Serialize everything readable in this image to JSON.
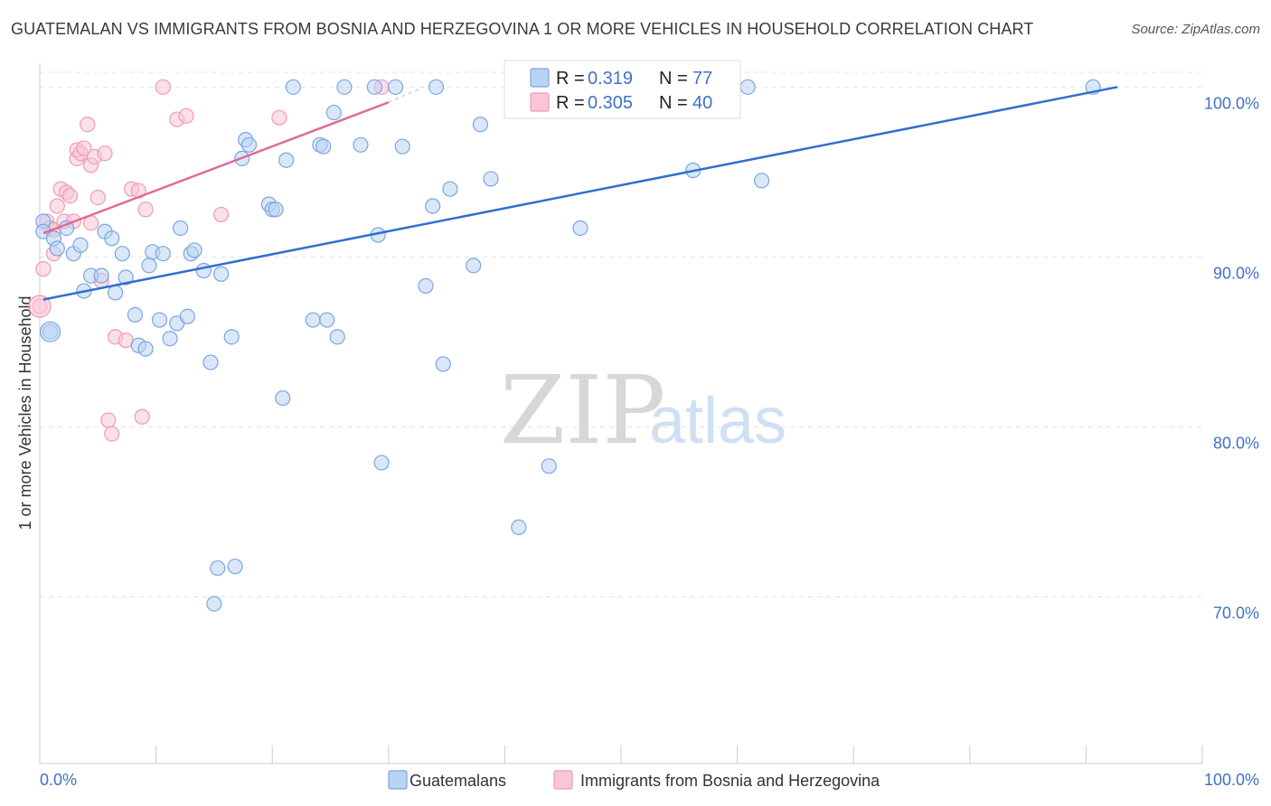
{
  "header": {
    "title": "GUATEMALAN VS IMMIGRANTS FROM BOSNIA AND HERZEGOVINA 1 OR MORE VEHICLES IN HOUSEHOLD CORRELATION CHART",
    "source": "Source: ZipAtlas.com"
  },
  "watermark": {
    "zip": "ZIP",
    "atlas": "atlas"
  },
  "stats": {
    "r_label": "R =",
    "n_label": "N =",
    "rows": [
      {
        "series": "Guatemalans",
        "r": "0.319",
        "n": "77",
        "fill": "#b9d3f4",
        "stroke": "#7aa6e0"
      },
      {
        "series": "Immigrants from Bosnia and Herzegovina",
        "r": "0.305",
        "n": "40",
        "fill": "#f9c6d6",
        "stroke": "#ee9bb5"
      }
    ]
  },
  "legend": {
    "items": [
      {
        "label": "Guatemalans",
        "fill": "#b9d3f4",
        "stroke": "#7aa6e0"
      },
      {
        "label": "Immigrants from Bosnia and Herzegovina",
        "fill": "#f9c6d6",
        "stroke": "#ee9bb5"
      }
    ]
  },
  "chart_data": {
    "type": "scatter",
    "title": "GUATEMALAN VS IMMIGRANTS FROM BOSNIA AND HERZEGOVINA 1 OR MORE VEHICLES IN HOUSEHOLD CORRELATION CHART",
    "xlabel": "",
    "ylabel": "1 or more Vehicles in Household",
    "x_ticks": [
      "0.0%",
      "100.0%"
    ],
    "y_ticks": [
      {
        "value": 100,
        "label": "100.0%"
      },
      {
        "value": 90,
        "label": "90.0%"
      },
      {
        "value": 80,
        "label": "80.0%"
      },
      {
        "value": 70,
        "label": "70.0%"
      }
    ],
    "xlim": [
      0,
      100
    ],
    "ylim": [
      60.2,
      101.4
    ],
    "grid": true,
    "legend_position": "bottom",
    "colors": {
      "blue": "#3f72c4",
      "blue_fill": "#b9d3f4",
      "blue_line": "#2f6fd0",
      "pink_fill": "#f9c6d6",
      "pink_line": "#e06b96"
    },
    "series": [
      {
        "name": "Guatemalans",
        "color": "#3f72c4",
        "trend": {
          "x": [
            0.3,
            92.7
          ],
          "y": [
            87.5,
            100.0
          ]
        },
        "points": [
          [
            0.3,
            92.1
          ],
          [
            0.3,
            91.5
          ],
          [
            0.9,
            85.6
          ],
          [
            1.2,
            91.1
          ],
          [
            1.5,
            90.5
          ],
          [
            2.3,
            91.7
          ],
          [
            2.9,
            90.2
          ],
          [
            3.5,
            90.7
          ],
          [
            3.8,
            88.0
          ],
          [
            4.4,
            88.9
          ],
          [
            5.3,
            88.9
          ],
          [
            5.6,
            91.5
          ],
          [
            6.2,
            91.1
          ],
          [
            6.5,
            87.9
          ],
          [
            7.1,
            90.2
          ],
          [
            7.4,
            88.8
          ],
          [
            8.2,
            86.6
          ],
          [
            8.5,
            84.8
          ],
          [
            9.1,
            84.6
          ],
          [
            9.4,
            89.5
          ],
          [
            9.7,
            90.3
          ],
          [
            10.3,
            86.3
          ],
          [
            10.6,
            90.2
          ],
          [
            11.2,
            85.2
          ],
          [
            11.8,
            86.1
          ],
          [
            12.1,
            91.7
          ],
          [
            12.7,
            86.5
          ],
          [
            13.0,
            90.2
          ],
          [
            13.3,
            90.4
          ],
          [
            14.1,
            89.2
          ],
          [
            14.7,
            83.8
          ],
          [
            15.0,
            69.6
          ],
          [
            15.3,
            71.7
          ],
          [
            15.6,
            89.0
          ],
          [
            16.5,
            85.3
          ],
          [
            16.8,
            71.8
          ],
          [
            17.4,
            95.8
          ],
          [
            17.7,
            96.9
          ],
          [
            18.0,
            96.6
          ],
          [
            19.7,
            93.1
          ],
          [
            20.0,
            92.8
          ],
          [
            20.3,
            92.8
          ],
          [
            20.9,
            81.7
          ],
          [
            21.2,
            95.7
          ],
          [
            21.8,
            100.0
          ],
          [
            23.5,
            86.3
          ],
          [
            24.1,
            96.6
          ],
          [
            24.4,
            96.5
          ],
          [
            24.7,
            86.3
          ],
          [
            25.3,
            98.5
          ],
          [
            25.6,
            85.3
          ],
          [
            26.2,
            100.0
          ],
          [
            27.6,
            96.6
          ],
          [
            28.8,
            100.0
          ],
          [
            29.1,
            91.3
          ],
          [
            29.4,
            77.9
          ],
          [
            30.6,
            100.0
          ],
          [
            31.2,
            96.5
          ],
          [
            33.2,
            88.3
          ],
          [
            33.8,
            93.0
          ],
          [
            34.1,
            100.0
          ],
          [
            34.7,
            83.7
          ],
          [
            35.3,
            94.0
          ],
          [
            37.3,
            89.5
          ],
          [
            37.9,
            97.8
          ],
          [
            38.8,
            94.6
          ],
          [
            40.9,
            100.0
          ],
          [
            41.2,
            74.1
          ],
          [
            43.5,
            100.0
          ],
          [
            43.8,
            77.7
          ],
          [
            46.5,
            91.7
          ],
          [
            52.4,
            100.0
          ],
          [
            56.2,
            95.1
          ],
          [
            60.9,
            100.0
          ],
          [
            62.1,
            94.5
          ],
          [
            90.6,
            100.0
          ]
        ]
      },
      {
        "name": "Immigrants from Bosnia and Herzegovina",
        "color": "#e06b96",
        "trend": {
          "x": [
            0.3,
            30.0
          ],
          "y": [
            91.4,
            99.1
          ]
        },
        "points": [
          [
            0.0,
            87.1
          ],
          [
            0.3,
            89.3
          ],
          [
            0.6,
            92.1
          ],
          [
            0.9,
            91.7
          ],
          [
            1.2,
            91.6
          ],
          [
            1.2,
            90.2
          ],
          [
            1.5,
            93.0
          ],
          [
            1.8,
            94.0
          ],
          [
            2.1,
            92.1
          ],
          [
            2.3,
            93.8
          ],
          [
            2.6,
            93.6
          ],
          [
            2.9,
            92.1
          ],
          [
            3.2,
            95.8
          ],
          [
            3.2,
            96.3
          ],
          [
            3.5,
            96.1
          ],
          [
            3.8,
            96.4
          ],
          [
            4.1,
            97.8
          ],
          [
            4.4,
            95.4
          ],
          [
            4.4,
            92.0
          ],
          [
            4.7,
            95.9
          ],
          [
            5.0,
            93.5
          ],
          [
            5.3,
            88.6
          ],
          [
            5.6,
            96.1
          ],
          [
            5.9,
            80.4
          ],
          [
            6.2,
            79.6
          ],
          [
            6.5,
            85.3
          ],
          [
            7.4,
            85.1
          ],
          [
            7.9,
            94.0
          ],
          [
            8.5,
            93.9
          ],
          [
            8.8,
            80.6
          ],
          [
            9.1,
            92.8
          ],
          [
            10.6,
            100.0
          ],
          [
            11.8,
            98.1
          ],
          [
            12.6,
            98.3
          ],
          [
            15.6,
            92.5
          ],
          [
            20.6,
            98.2
          ],
          [
            29.4,
            100.0
          ]
        ]
      }
    ]
  }
}
